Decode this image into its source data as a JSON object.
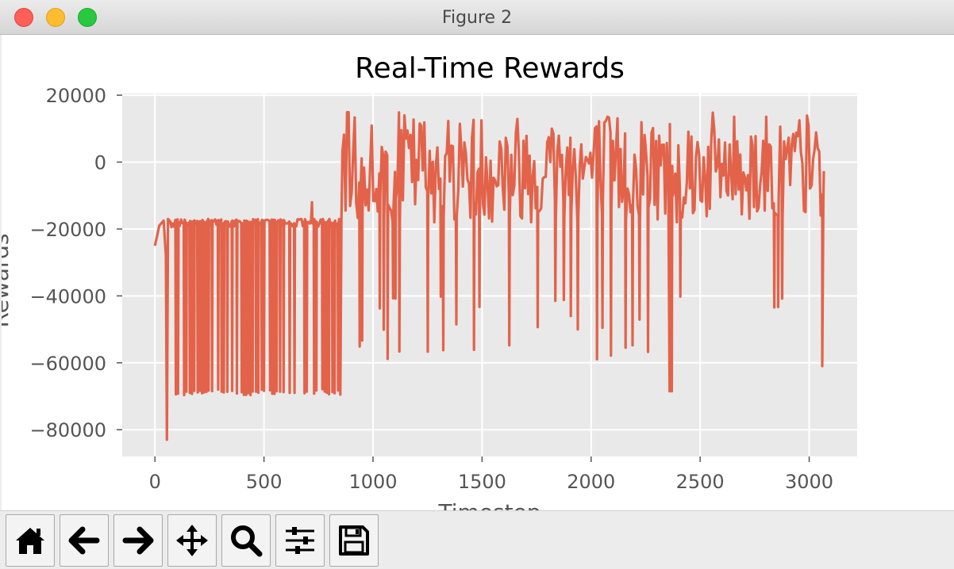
{
  "window": {
    "title": "Figure 2"
  },
  "toolbar": {
    "buttons": [
      {
        "name": "home-button",
        "icon": "home-icon"
      },
      {
        "name": "back-button",
        "icon": "arrow-left-icon"
      },
      {
        "name": "forward-button",
        "icon": "arrow-right-icon"
      },
      {
        "name": "pan-button",
        "icon": "move-icon"
      },
      {
        "name": "zoom-button",
        "icon": "magnifier-icon"
      },
      {
        "name": "configure-subplots-button",
        "icon": "sliders-icon"
      },
      {
        "name": "save-button",
        "icon": "floppy-disk-icon"
      }
    ]
  },
  "chart_data": {
    "type": "line",
    "title": "Real-Time Rewards",
    "xlabel": "Timestep",
    "ylabel": "Rewards",
    "xlim": [
      -150,
      3220
    ],
    "ylim": [
      -88000,
      20500
    ],
    "xticks": [
      0,
      500,
      1000,
      1500,
      2000,
      2500,
      3000
    ],
    "yticks": [
      20000,
      0,
      -20000,
      -40000,
      -60000,
      -80000
    ],
    "xtick_labels": [
      "0",
      "500",
      "1000",
      "1500",
      "2000",
      "2500",
      "3000"
    ],
    "ytick_labels": [
      "20000",
      "0",
      "−20000",
      "−40000",
      "−60000",
      "−80000"
    ],
    "grid": true,
    "series": [
      {
        "color": "#e2634a",
        "regimes": [
          {
            "x_start": 0,
            "x_end": 850,
            "baseline": -17000,
            "low": -69000,
            "spikes_min": -83000,
            "typical_drop": -68500
          },
          {
            "x_start": 850,
            "x_end": 3070,
            "baseline_low": -18000,
            "baseline_high": 15000,
            "drops_to": -60000
          }
        ]
      }
    ]
  }
}
